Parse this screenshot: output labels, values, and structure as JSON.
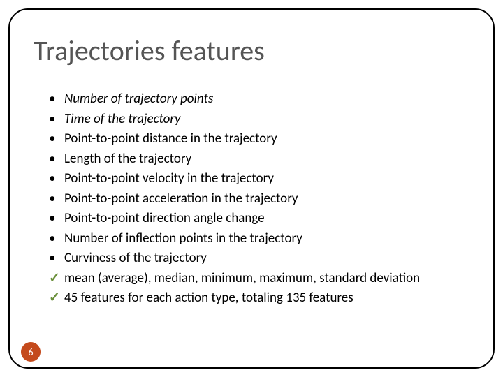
{
  "slide": {
    "title": "Trajectories features",
    "title_color": "#555555",
    "title_fontsize": 40,
    "bullets": [
      {
        "text": "Number of trajectory points",
        "italic": true
      },
      {
        "text": "Time of the trajectory",
        "italic": true
      },
      {
        "text": "Point-to-point distance in the trajectory",
        "italic": false
      },
      {
        "text": "Length of the trajectory",
        "italic": false
      },
      {
        "text": "Point-to-point velocity in the trajectory",
        "italic": false
      },
      {
        "text": "Point-to-point acceleration in the trajectory",
        "italic": false
      },
      {
        "text": "Point-to-point direction angle change",
        "italic": false
      },
      {
        "text": "Number of inflection points in the trajectory",
        "italic": false
      },
      {
        "text": "Curviness of the trajectory",
        "italic": false
      }
    ],
    "checks": [
      "mean (average), median, minimum, maximum, standard deviation",
      "45 features for each action type, totaling 135 features"
    ],
    "bullet_fontsize": 19,
    "bullet_marker": "•",
    "check_marker": "✓",
    "check_color": "#6a8f3a",
    "page_number": "6",
    "badge_bg": "#c44a1c",
    "badge_fg": "#ffffff",
    "frame_border_color": "#000000",
    "frame_border_radius": 28,
    "background_color": "#ffffff"
  }
}
